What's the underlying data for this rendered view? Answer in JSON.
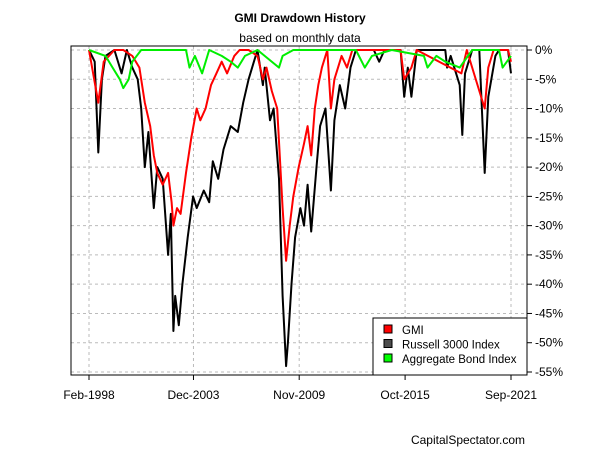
{
  "chart_data": {
    "type": "line",
    "title": "GMI Drawdown History",
    "subtitle": "based on monthly data",
    "source": "CapitalSpectator.com",
    "xlabel": "",
    "ylabel": "",
    "x_ticks": [
      {
        "label": "Feb-1998",
        "t": 1998.08
      },
      {
        "label": "Dec-2003",
        "t": 2003.92
      },
      {
        "label": "Nov-2009",
        "t": 2009.83
      },
      {
        "label": "Oct-2015",
        "t": 2015.75
      },
      {
        "label": "Sep-2021",
        "t": 2021.67
      }
    ],
    "xlim": [
      1997.05,
      2022.5
    ],
    "ylim": [
      -55.7,
      0.7
    ],
    "y_ticks": [
      0,
      -5,
      -10,
      -15,
      -20,
      -25,
      -30,
      -35,
      -40,
      -45,
      -50,
      -55
    ],
    "y_tick_suffix": "%",
    "grid": true,
    "legend_position": "bottom-right",
    "series": [
      {
        "name": "Russell 3000 Index",
        "color": "#000000",
        "legend_color": "#4d4d4d",
        "points": [
          [
            1998.08,
            0
          ],
          [
            1998.4,
            -2
          ],
          [
            1998.6,
            -17.5
          ],
          [
            1998.8,
            -5
          ],
          [
            1999.0,
            -1
          ],
          [
            1999.5,
            0
          ],
          [
            1999.9,
            -4
          ],
          [
            2000.2,
            0
          ],
          [
            2000.5,
            -3
          ],
          [
            2000.8,
            -5
          ],
          [
            2001.0,
            -10
          ],
          [
            2001.2,
            -20
          ],
          [
            2001.4,
            -14
          ],
          [
            2001.7,
            -27
          ],
          [
            2001.9,
            -20
          ],
          [
            2002.2,
            -22
          ],
          [
            2002.5,
            -35
          ],
          [
            2002.65,
            -28
          ],
          [
            2002.8,
            -48
          ],
          [
            2002.9,
            -42
          ],
          [
            2003.1,
            -47
          ],
          [
            2003.3,
            -40
          ],
          [
            2003.6,
            -32
          ],
          [
            2003.9,
            -25
          ],
          [
            2004.1,
            -27
          ],
          [
            2004.5,
            -24
          ],
          [
            2004.8,
            -26
          ],
          [
            2005.0,
            -19
          ],
          [
            2005.3,
            -22
          ],
          [
            2005.6,
            -17
          ],
          [
            2006.0,
            -13
          ],
          [
            2006.4,
            -14
          ],
          [
            2006.7,
            -9
          ],
          [
            2007.0,
            -5
          ],
          [
            2007.3,
            -2
          ],
          [
            2007.5,
            0
          ],
          [
            2007.8,
            -6
          ],
          [
            2007.9,
            -3
          ],
          [
            2008.2,
            -12
          ],
          [
            2008.4,
            -10
          ],
          [
            2008.7,
            -22
          ],
          [
            2008.9,
            -42
          ],
          [
            2009.1,
            -54
          ],
          [
            2009.2,
            -50
          ],
          [
            2009.4,
            -40
          ],
          [
            2009.6,
            -32
          ],
          [
            2009.9,
            -27
          ],
          [
            2010.1,
            -30
          ],
          [
            2010.3,
            -23
          ],
          [
            2010.5,
            -31
          ],
          [
            2010.8,
            -20
          ],
          [
            2011.0,
            -13
          ],
          [
            2011.3,
            -10
          ],
          [
            2011.6,
            -24
          ],
          [
            2011.8,
            -12
          ],
          [
            2012.1,
            -6
          ],
          [
            2012.4,
            -10
          ],
          [
            2012.7,
            -3
          ],
          [
            2013.0,
            0
          ],
          [
            2014.0,
            0
          ],
          [
            2014.3,
            -2
          ],
          [
            2014.6,
            0
          ],
          [
            2015.5,
            0
          ],
          [
            2015.7,
            -8
          ],
          [
            2015.9,
            -3
          ],
          [
            2016.1,
            -8
          ],
          [
            2016.4,
            0
          ],
          [
            2018.0,
            0
          ],
          [
            2018.1,
            -3
          ],
          [
            2018.3,
            -1
          ],
          [
            2018.8,
            -6
          ],
          [
            2018.95,
            -14.5
          ],
          [
            2019.1,
            -4
          ],
          [
            2019.5,
            0
          ],
          [
            2019.9,
            0
          ],
          [
            2020.2,
            -21
          ],
          [
            2020.4,
            -8
          ],
          [
            2020.8,
            -1
          ],
          [
            2021.0,
            0
          ],
          [
            2021.5,
            0
          ],
          [
            2021.67,
            -4
          ]
        ]
      },
      {
        "name": "GMI",
        "color": "#ff0000",
        "legend_color": "#ff0000",
        "points": [
          [
            1998.08,
            0
          ],
          [
            1998.6,
            -9
          ],
          [
            1998.9,
            -2
          ],
          [
            1999.5,
            0
          ],
          [
            2000.0,
            0
          ],
          [
            2000.5,
            -1
          ],
          [
            2000.9,
            -3
          ],
          [
            2001.2,
            -9
          ],
          [
            2001.5,
            -13
          ],
          [
            2001.7,
            -18
          ],
          [
            2001.9,
            -21
          ],
          [
            2002.2,
            -23
          ],
          [
            2002.5,
            -21
          ],
          [
            2002.7,
            -26
          ],
          [
            2002.8,
            -30
          ],
          [
            2003.0,
            -27
          ],
          [
            2003.2,
            -28
          ],
          [
            2003.5,
            -21
          ],
          [
            2003.8,
            -15
          ],
          [
            2004.1,
            -10
          ],
          [
            2004.3,
            -12
          ],
          [
            2004.6,
            -10
          ],
          [
            2004.9,
            -6
          ],
          [
            2005.2,
            -4
          ],
          [
            2005.5,
            -2
          ],
          [
            2005.8,
            -4
          ],
          [
            2006.2,
            -1
          ],
          [
            2006.5,
            0
          ],
          [
            2007.0,
            0
          ],
          [
            2007.5,
            -1
          ],
          [
            2007.8,
            -5
          ],
          [
            2008.0,
            -3
          ],
          [
            2008.3,
            -7
          ],
          [
            2008.6,
            -10
          ],
          [
            2008.9,
            -27
          ],
          [
            2009.1,
            -36
          ],
          [
            2009.3,
            -30
          ],
          [
            2009.5,
            -25
          ],
          [
            2009.8,
            -20
          ],
          [
            2010.1,
            -16
          ],
          [
            2010.3,
            -13
          ],
          [
            2010.5,
            -18
          ],
          [
            2010.7,
            -10
          ],
          [
            2010.9,
            -6
          ],
          [
            2011.1,
            -3
          ],
          [
            2011.4,
            0
          ],
          [
            2011.6,
            -10
          ],
          [
            2011.8,
            -5
          ],
          [
            2012.2,
            -1
          ],
          [
            2012.5,
            -3
          ],
          [
            2012.8,
            0
          ],
          [
            2015.5,
            0
          ],
          [
            2015.7,
            -5
          ],
          [
            2016.1,
            -3
          ],
          [
            2016.4,
            0
          ],
          [
            2018.9,
            -4
          ],
          [
            2019.2,
            0
          ],
          [
            2020.2,
            -10
          ],
          [
            2020.4,
            -3
          ],
          [
            2020.7,
            0
          ],
          [
            2021.5,
            0
          ],
          [
            2021.67,
            -2
          ]
        ]
      },
      {
        "name": "Aggregate Bond Index",
        "color": "#00ee00",
        "legend_color": "#00ff00",
        "points": [
          [
            1998.08,
            0
          ],
          [
            1999.0,
            -1
          ],
          [
            1999.4,
            -3
          ],
          [
            1999.8,
            -5
          ],
          [
            2000.0,
            -6.5
          ],
          [
            2000.3,
            -5
          ],
          [
            2000.5,
            -2
          ],
          [
            2001.0,
            0
          ],
          [
            2003.5,
            0
          ],
          [
            2003.7,
            -3
          ],
          [
            2004.0,
            -1
          ],
          [
            2004.4,
            -4
          ],
          [
            2004.8,
            0
          ],
          [
            2005.5,
            -1
          ],
          [
            2006.0,
            -2
          ],
          [
            2006.4,
            -3
          ],
          [
            2006.8,
            -1
          ],
          [
            2007.5,
            0
          ],
          [
            2008.7,
            -3
          ],
          [
            2008.9,
            -1
          ],
          [
            2009.5,
            0
          ],
          [
            2013.0,
            0
          ],
          [
            2013.5,
            -3
          ],
          [
            2013.9,
            -1
          ],
          [
            2015.0,
            0
          ],
          [
            2016.8,
            -1
          ],
          [
            2017.0,
            -3
          ],
          [
            2017.5,
            -1
          ],
          [
            2018.0,
            -2
          ],
          [
            2018.8,
            -3
          ],
          [
            2019.5,
            0
          ],
          [
            2021.0,
            0
          ],
          [
            2021.2,
            -3
          ],
          [
            2021.67,
            -1
          ]
        ]
      }
    ]
  }
}
